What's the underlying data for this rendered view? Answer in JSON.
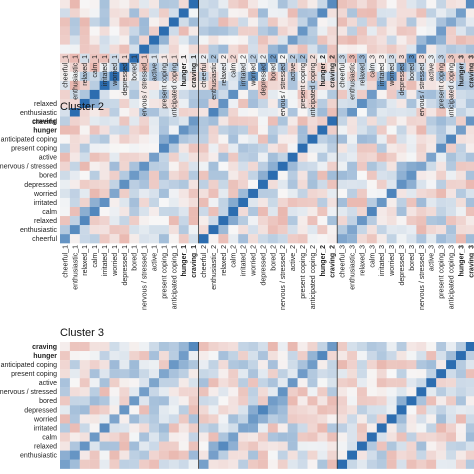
{
  "chart_data": {
    "type": "heatmap",
    "variables": [
      "cheerful",
      "enthusiastic",
      "relaxed",
      "calm",
      "irritated",
      "worried",
      "depressed",
      "bored",
      "nervous / stressed",
      "active",
      "present coping",
      "anticipated coping",
      "hunger",
      "craving"
    ],
    "bold_variables": [
      "hunger",
      "craving"
    ],
    "column_labels": [
      "cheerful_1",
      "enthusiastic_1",
      "relaxed_1",
      "calm_1",
      "irritated_1",
      "worried_1",
      "depressed_1",
      "bored_1",
      "nervous / stressed_1",
      "active_1",
      "present coping_1",
      "anticipated coping_1",
      "hunger_1",
      "craving_1",
      "cheerful_2",
      "enthusiastic_2",
      "relaxed_2",
      "calm_2",
      "irritated_2",
      "worried_2",
      "depressed_2",
      "bored_2",
      "nervous / stressed_2",
      "active_2",
      "present coping_2",
      "anticipated coping_2",
      "hunger_2",
      "craving_2",
      "cheerful_3",
      "enthusiastic_3",
      "relaxed_3",
      "calm_3",
      "irritated_3",
      "worried_3",
      "depressed_3",
      "bored_3",
      "nervous / stressed_3",
      "active_3",
      "present coping_3",
      "anticipated coping_3",
      "hunger_3",
      "craving_3"
    ],
    "panels": [
      {
        "title": "",
        "visible_rows": [
          "relaxed",
          "enthusiastic",
          "cheerful"
        ]
      },
      {
        "title": "Cluster 2",
        "visible_rows": [
          "craving",
          "hunger",
          "anticipated coping",
          "present coping",
          "active",
          "nervous / stressed",
          "bored",
          "depressed",
          "worried",
          "irritated",
          "calm",
          "relaxed",
          "enthusiastic",
          "cheerful"
        ]
      },
      {
        "title": "Cluster 3",
        "visible_rows": [
          "craving",
          "hunger",
          "anticipated coping",
          "present coping",
          "active",
          "nervous / stressed",
          "bored",
          "depressed",
          "worried",
          "irritated",
          "calm",
          "relaxed",
          "enthusiastic"
        ]
      }
    ],
    "colors": {
      "positive": "#2166ac",
      "negative": "#d6604d",
      "neutral": "#f7f7f7",
      "diagonal": "#1f5fa8",
      "divider": "#333333"
    }
  }
}
